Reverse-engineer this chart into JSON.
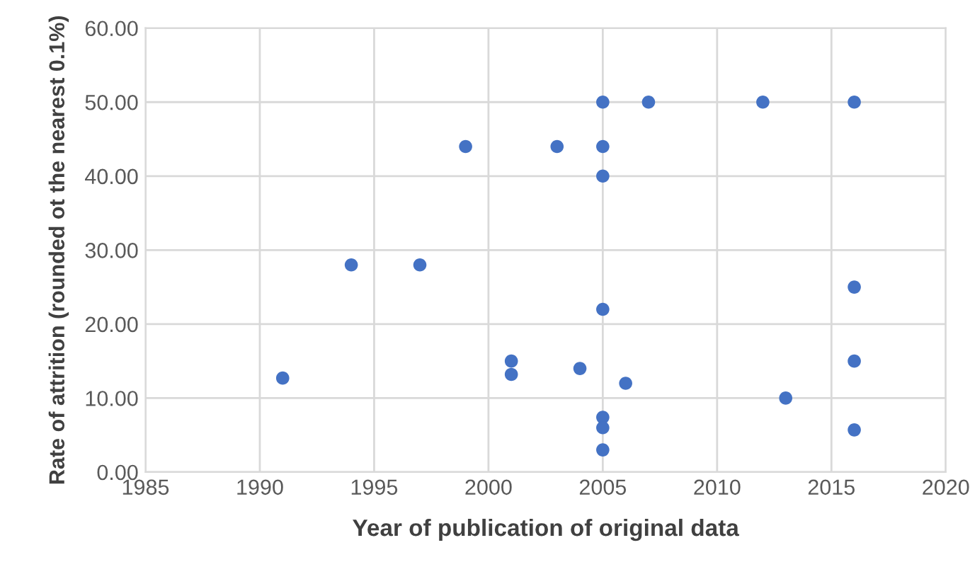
{
  "chart_data": {
    "type": "scatter",
    "xlabel": "Year of publication of original data",
    "ylabel": "Rate of attrition (rounded ot the nearest 0.1%)",
    "x": [
      1991,
      1994,
      1997,
      1999,
      2001,
      2001,
      2003,
      2004,
      2005,
      2005,
      2005,
      2005,
      2005,
      2005,
      2005,
      2006,
      2007,
      2012,
      2013,
      2016,
      2016,
      2016,
      2016
    ],
    "values": [
      12.7,
      28,
      28,
      44,
      15,
      13.2,
      44,
      14,
      50,
      44,
      40,
      22,
      7.4,
      6,
      3,
      12,
      50,
      50,
      10,
      50,
      25,
      15,
      5.7
    ],
    "color": "#4472c4",
    "marker": "circle",
    "xlim": [
      1985,
      2020
    ],
    "xticks": [
      1985,
      1990,
      1995,
      2000,
      2005,
      2010,
      2015,
      2020
    ],
    "ylim": [
      0,
      60
    ],
    "yticks": [
      {
        "value": 0,
        "label": "0.00"
      },
      {
        "value": 10,
        "label": "10.00"
      },
      {
        "value": 20,
        "label": "20.00"
      },
      {
        "value": 30,
        "label": "30.00"
      },
      {
        "value": 40,
        "label": "40.00"
      },
      {
        "value": 50,
        "label": "50.00"
      },
      {
        "value": 60,
        "label": "60.00"
      }
    ],
    "grid": true
  }
}
